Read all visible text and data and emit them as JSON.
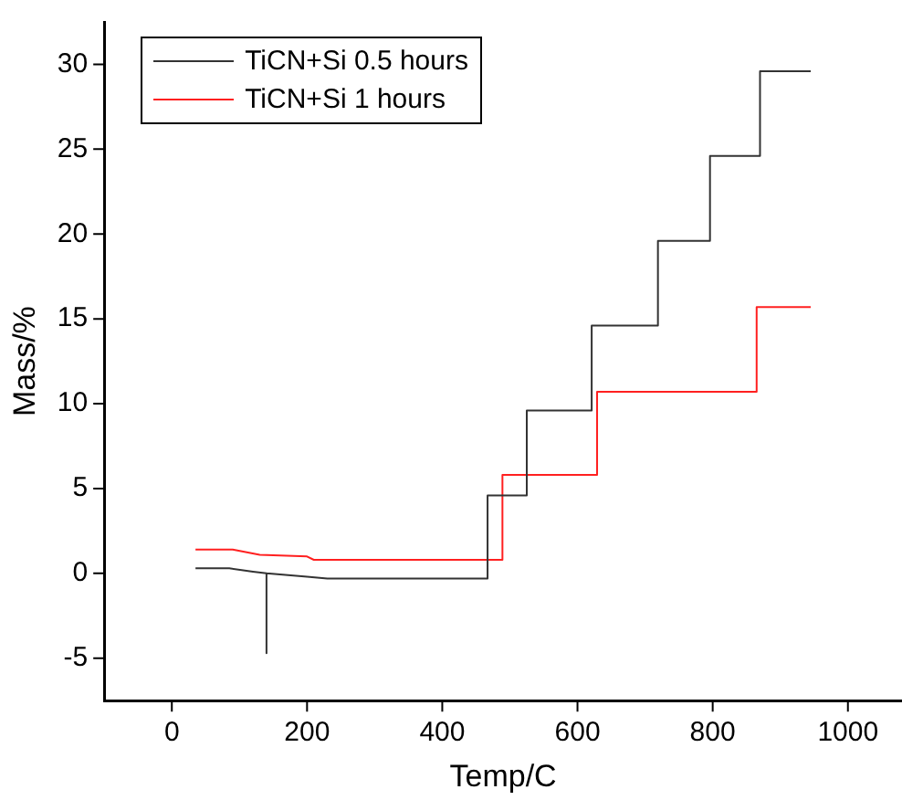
{
  "chart_data": {
    "type": "line",
    "xlabel": "Temp/C",
    "ylabel": "Mass/%",
    "xlim": [
      -100,
      1080
    ],
    "ylim": [
      -7.5,
      32.5
    ],
    "xticks": [
      0,
      200,
      400,
      600,
      800,
      1000
    ],
    "yticks": [
      -5,
      0,
      5,
      10,
      15,
      20,
      25,
      30
    ],
    "grid": false,
    "legend": "top left",
    "marker": "none",
    "line_style": "solid",
    "series": [
      {
        "name": "TiCN+Si 0.5 hours",
        "color": "#333333",
        "x": [
          35,
          85,
          120,
          140,
          140,
          140,
          200,
          230,
          467,
          467,
          525,
          525,
          621,
          621,
          719,
          719,
          796,
          796,
          870,
          870,
          945
        ],
        "values": [
          0.3,
          0.3,
          0.1,
          0,
          -4.7,
          0,
          -0.2,
          -0.3,
          -0.3,
          4.6,
          4.6,
          9.6,
          9.6,
          14.6,
          14.6,
          19.6,
          19.6,
          24.6,
          24.6,
          29.6,
          29.6
        ]
      },
      {
        "name": "TiCN+Si 1 hours",
        "color": "#ff2020",
        "x": [
          35,
          90,
          130,
          200,
          210,
          489,
          489,
          629,
          629,
          865,
          865,
          945
        ],
        "values": [
          1.4,
          1.4,
          1.1,
          1.0,
          0.8,
          0.8,
          5.8,
          5.8,
          10.7,
          10.7,
          15.7,
          15.7
        ]
      }
    ]
  }
}
